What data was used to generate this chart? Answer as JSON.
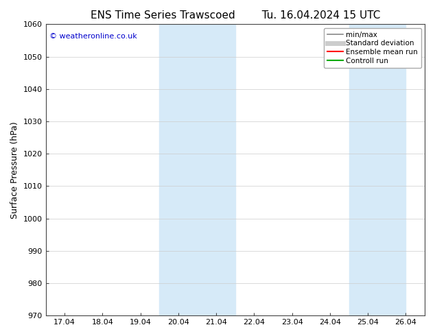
{
  "title_left": "ENS Time Series Trawscoed",
  "title_right": "Tu. 16.04.2024 15 UTC",
  "ylabel": "Surface Pressure (hPa)",
  "watermark": "© weatheronline.co.uk",
  "ylim": [
    970,
    1060
  ],
  "yticks": [
    970,
    980,
    990,
    1000,
    1010,
    1020,
    1030,
    1040,
    1050,
    1060
  ],
  "xtick_labels": [
    "17.04",
    "18.04",
    "19.04",
    "20.04",
    "21.04",
    "22.04",
    "23.04",
    "24.04",
    "25.04",
    "26.04"
  ],
  "xtick_positions": [
    0,
    1,
    2,
    3,
    4,
    5,
    6,
    7,
    8,
    9
  ],
  "xlim": [
    -0.5,
    9.5
  ],
  "shaded_regions": [
    {
      "xmin": 2.5,
      "xmax": 4.5
    },
    {
      "xmin": 7.5,
      "xmax": 9.0
    }
  ],
  "shade_color": "#d6eaf8",
  "legend_items": [
    {
      "label": "min/max",
      "color": "#888888",
      "lw": 1.2
    },
    {
      "label": "Standard deviation",
      "color": "#cccccc",
      "lw": 5
    },
    {
      "label": "Ensemble mean run",
      "color": "#ff0000",
      "lw": 1.5
    },
    {
      "label": "Controll run",
      "color": "#00aa00",
      "lw": 1.5
    }
  ],
  "background_color": "#ffffff",
  "grid_color": "#cccccc",
  "title_fontsize": 11,
  "tick_fontsize": 8,
  "ylabel_fontsize": 9,
  "watermark_color": "#0000cc",
  "watermark_fontsize": 8,
  "legend_fontsize": 7.5
}
